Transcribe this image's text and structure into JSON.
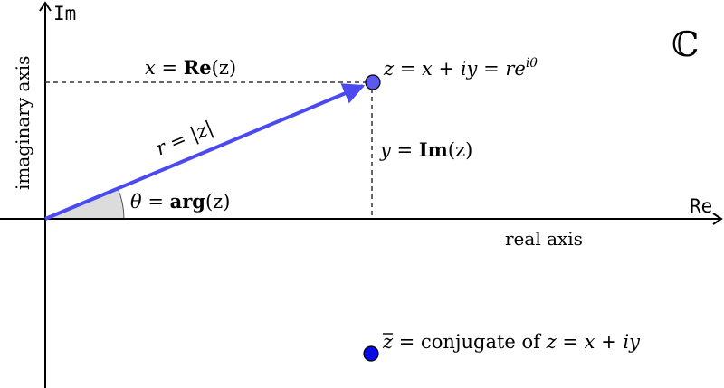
{
  "diagram": {
    "axis_label_im": "Im",
    "axis_label_re": "Re",
    "imaginary_axis_label": "imaginary axis",
    "real_axis_label": "real axis",
    "complex_plane_symbol": "ℂ",
    "re_label": {
      "lhs": "x",
      "eq": " = ",
      "fn": "Re",
      "arg": "(z)"
    },
    "im_label": {
      "lhs": "y",
      "eq": " = ",
      "fn": "Im",
      "arg": "(z)"
    },
    "arg_label": {
      "lhs": "θ",
      "eq": " = ",
      "fn": "arg",
      "arg": "(z)"
    },
    "modulus_label": {
      "lhs": "r",
      "eq": " = ",
      "rhs": "|z|"
    },
    "point_z_label": {
      "a": "z",
      "b": " = ",
      "c": "x",
      "d": " + ",
      "e": "iy",
      "f": " = ",
      "g": "re",
      "sup": "iθ"
    },
    "conjugate_label": {
      "bar": "z",
      "eq": " = ",
      "text": "conjugate of ",
      "c": "z",
      "d": " = ",
      "e": "x",
      "f": " + ",
      "g": "iy"
    },
    "colors": {
      "axes": "#000000",
      "vector": "#4a4af0",
      "point_z": "#5a5aee",
      "point_conj": "#0a0ae6",
      "angle_fill": "#dcdcdc",
      "dashed": "#333333"
    }
  }
}
